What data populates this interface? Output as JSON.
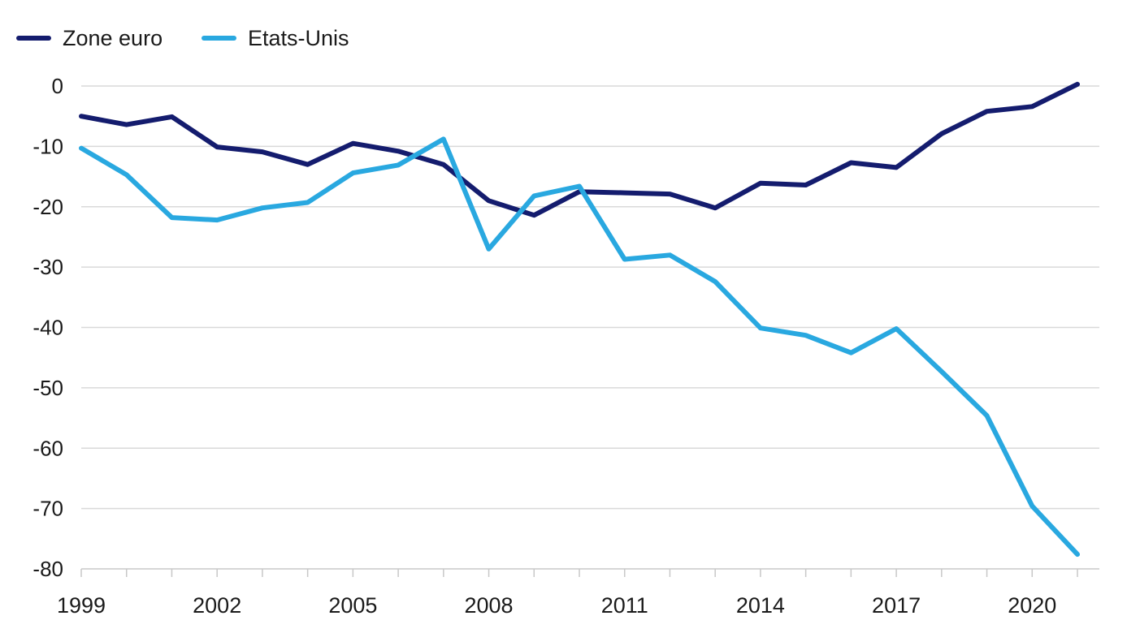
{
  "colors": {
    "background": "#ffffff",
    "grid": "#d9d9d9",
    "axis": "#c8c8c8",
    "text": "#1a1a1a",
    "zone_euro_line": "#141c6e",
    "etats_unis_line": "#29a8e0"
  },
  "chart_data": {
    "type": "line",
    "title": "",
    "xlabel": "",
    "ylabel": "",
    "grid": true,
    "legend_position": "top-left",
    "ylim": [
      -80,
      0
    ],
    "yticks": [
      0,
      -10,
      -20,
      -30,
      -40,
      -50,
      -60,
      -70,
      -80
    ],
    "x": [
      1999,
      2000,
      2001,
      2002,
      2003,
      2004,
      2005,
      2006,
      2007,
      2008,
      2009,
      2010,
      2011,
      2012,
      2013,
      2014,
      2015,
      2016,
      2017,
      2018,
      2019,
      2020,
      2021
    ],
    "xtick_label_years": [
      1999,
      2002,
      2005,
      2008,
      2011,
      2014,
      2017,
      2020
    ],
    "series": [
      {
        "name": "Zone euro",
        "color": "#141c6e",
        "values": [
          -5.0,
          -6.4,
          -5.1,
          -10.1,
          -10.9,
          -13.0,
          -9.5,
          -10.8,
          -13.0,
          -19.0,
          -21.4,
          -17.5,
          -17.7,
          -17.9,
          -20.2,
          -16.1,
          -16.4,
          -12.7,
          -13.5,
          -7.9,
          -4.2,
          -3.4,
          0.3
        ]
      },
      {
        "name": "Etats-Unis",
        "color": "#29a8e0",
        "values": [
          -10.3,
          -14.7,
          -21.8,
          -22.2,
          -20.2,
          -19.3,
          -14.4,
          -13.1,
          -8.8,
          -27.0,
          -18.2,
          -16.6,
          -28.7,
          -28.0,
          -32.4,
          -40.1,
          -41.3,
          -44.2,
          -40.2,
          -47.3,
          -54.6,
          -69.6,
          -77.6
        ]
      }
    ]
  }
}
